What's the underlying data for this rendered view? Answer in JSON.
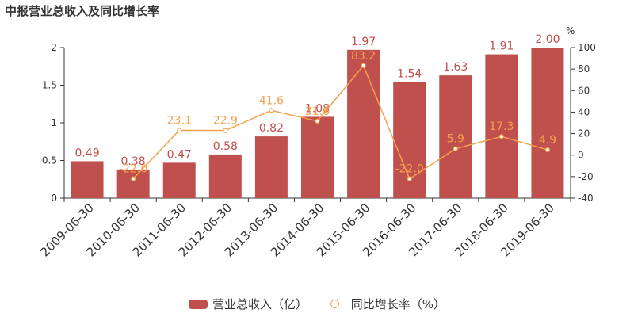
{
  "title": "中报营业总收入及同比增长率",
  "colors": {
    "bar": "#c0504d",
    "line": "#f5a04a",
    "axis": "#333333"
  },
  "chart_data": {
    "type": "bar",
    "categories": [
      "2009-06-30",
      "2010-06-30",
      "2011-06-30",
      "2012-06-30",
      "2013-06-30",
      "2014-06-30",
      "2015-06-30",
      "2016-06-30",
      "2017-06-30",
      "2018-06-30",
      "2019-06-30"
    ],
    "series": [
      {
        "name": "营业总收入（亿）",
        "type": "bar",
        "axis": "left",
        "values": [
          0.49,
          0.38,
          0.47,
          0.58,
          0.82,
          1.08,
          1.97,
          1.54,
          1.63,
          1.91,
          2.0
        ],
        "labels": [
          "0.49",
          "0.38",
          "0.47",
          "0.58",
          "0.82",
          "1.08",
          "1.97",
          "1.54",
          "1.63",
          "1.91",
          "2.00"
        ]
      },
      {
        "name": "同比增长率（%）",
        "type": "line",
        "axis": "right",
        "values": [
          null,
          -22.0,
          23.1,
          22.9,
          41.6,
          31.6,
          83.2,
          -22.0,
          5.9,
          17.3,
          4.9
        ],
        "labels": [
          "",
          "-22.0",
          "23.1",
          "22.9",
          "41.6",
          "31.6",
          "83.2",
          "-22.0",
          "5.9",
          "17.3",
          "4.9"
        ]
      }
    ],
    "left_axis": {
      "ticks": [
        "0",
        "0.5",
        "1",
        "1.5",
        "2"
      ],
      "ylim": [
        0,
        2
      ]
    },
    "right_axis": {
      "unit": "%",
      "ticks": [
        "-40",
        "-20",
        "0",
        "20",
        "40",
        "60",
        "80",
        "100"
      ],
      "ylim": [
        -40,
        100
      ]
    },
    "legend": "bottom"
  }
}
